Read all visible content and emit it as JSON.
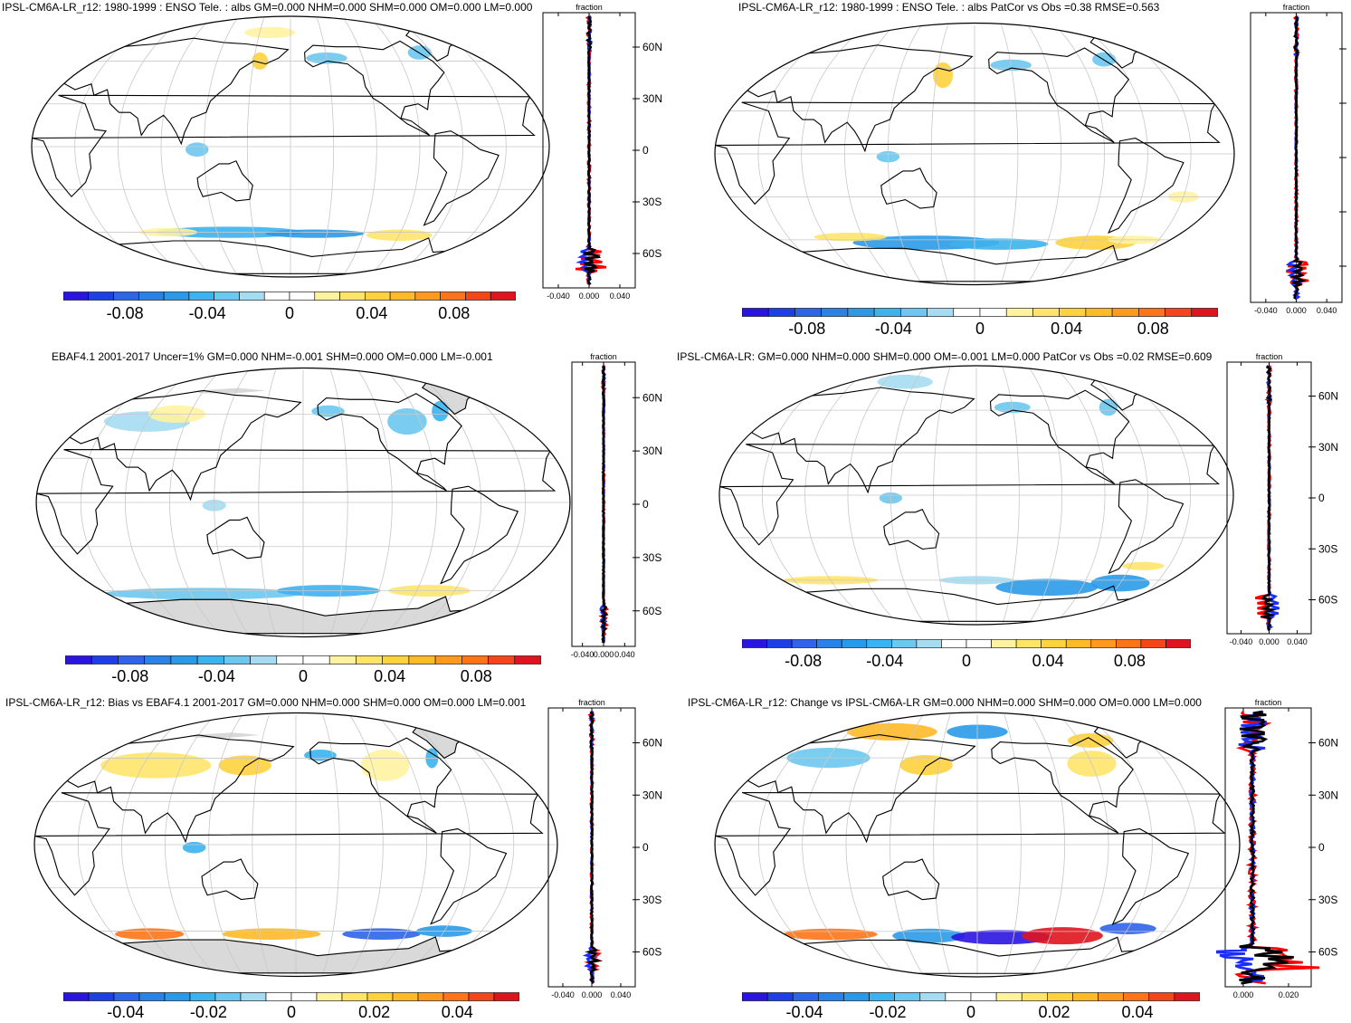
{
  "panels": [
    {
      "title": "IPSL-CM6A-LR_r12: 1980-1999 : ENSO Tele. : albs GM=0.000 NHM=0.000 SHM=0.000 OM=0.000 LM=0.000",
      "colorbar_ticks": [
        "-0.08",
        "-0.04",
        "0",
        "0.04",
        "0.08"
      ],
      "colorbar_range": [
        -0.11,
        0.11
      ],
      "zonal_axis_title": "fraction",
      "zonal_lat_labels": [
        "60N",
        "30N",
        "0",
        "30S",
        "60S"
      ],
      "zonal_x_labels": [
        "-0.040",
        "0.000",
        "0.040"
      ],
      "zonal_xlim": [
        -0.06,
        0.06
      ],
      "missing_data_shown": false
    },
    {
      "title": "IPSL-CM6A-LR_r12: 1980-1999 : ENSO Tele. : albs PatCor vs Obs =0.38 RMSE=0.563",
      "colorbar_ticks": [
        "-0.08",
        "-0.04",
        "0",
        "0.04",
        "0.08"
      ],
      "colorbar_range": [
        -0.11,
        0.11
      ],
      "zonal_axis_title": "fraction",
      "zonal_lat_labels": [],
      "zonal_x_labels": [
        "-0.040",
        "0.000",
        "0.040"
      ],
      "zonal_xlim": [
        -0.06,
        0.06
      ],
      "missing_data_shown": false
    },
    {
      "title": "EBAF4.1 2001-2017 Uncer=1% GM=0.000 NHM=-0.001 SHM=0.000 OM=0.000 LM=-0.001",
      "colorbar_ticks": [
        "-0.08",
        "-0.04",
        "0",
        "0.04",
        "0.08"
      ],
      "colorbar_range": [
        -0.11,
        0.11
      ],
      "zonal_axis_title": "fraction",
      "zonal_lat_labels": [
        "60N",
        "30N",
        "0",
        "30S",
        "60S"
      ],
      "zonal_x_labels": [
        "-0.040",
        "0.000",
        "0.040"
      ],
      "zonal_xlim": [
        -0.06,
        0.06
      ],
      "missing_data_shown": true
    },
    {
      "title": "IPSL-CM6A-LR: GM=0.000 NHM=0.000 SHM=0.000 OM=-0.001 LM=0.000 PatCor vs Obs =0.02 RMSE=0.609",
      "colorbar_ticks": [
        "-0.08",
        "-0.04",
        "0",
        "0.04",
        "0.08"
      ],
      "colorbar_range": [
        -0.11,
        0.11
      ],
      "zonal_axis_title": "fraction",
      "zonal_lat_labels": [
        "60N",
        "30N",
        "0",
        "30S",
        "60S"
      ],
      "zonal_x_labels": [
        "-0.040",
        "0.000",
        "0.040"
      ],
      "zonal_xlim": [
        -0.06,
        0.06
      ],
      "missing_data_shown": false
    },
    {
      "title": "IPSL-CM6A-LR_r12: Bias vs EBAF4.1 2001-2017 GM=0.000 NHM=0.000 SHM=0.000 OM=0.000 LM=0.001",
      "colorbar_ticks": [
        "-0.04",
        "-0.02",
        "0",
        "0.02",
        "0.04"
      ],
      "colorbar_range": [
        -0.055,
        0.055
      ],
      "zonal_axis_title": "fraction",
      "zonal_lat_labels": [
        "60N",
        "30N",
        "0",
        "30S",
        "60S"
      ],
      "zonal_x_labels": [
        "-0.040",
        "0.000",
        "0.040"
      ],
      "zonal_xlim": [
        -0.06,
        0.06
      ],
      "missing_data_shown": true
    },
    {
      "title": "IPSL-CM6A-LR_r12: Change vs IPSL-CM6A-LR GM=0.000 NHM=0.000 SHM=0.000 OM=0.000 LM=0.000",
      "colorbar_ticks": [
        "-0.04",
        "-0.02",
        "0",
        "0.02",
        "0.04"
      ],
      "colorbar_range": [
        -0.055,
        0.055
      ],
      "zonal_axis_title": "fraction",
      "zonal_lat_labels": [
        "60N",
        "30N",
        "0",
        "30S",
        "60S"
      ],
      "zonal_x_labels": [
        "0.000",
        "0.020"
      ],
      "zonal_xlim": [
        -0.008,
        0.03
      ],
      "missing_data_shown": false
    }
  ],
  "colors": {
    "palette": [
      "#2a14e0",
      "#1e3fe6",
      "#2e64e8",
      "#2a82e6",
      "#2a9ae8",
      "#3cb2ee",
      "#6cc8f0",
      "#a6dcf2",
      "#ffffff",
      "#ffffff",
      "#fff3a0",
      "#ffe46a",
      "#ffd23e",
      "#ffba28",
      "#ff9a1e",
      "#ff7418",
      "#f4461a",
      "#e0141e"
    ],
    "model_line": "#ff0000",
    "obs_line": "#1a2cff",
    "mean_line": "#000000",
    "missing": "#d9d9d9"
  }
}
